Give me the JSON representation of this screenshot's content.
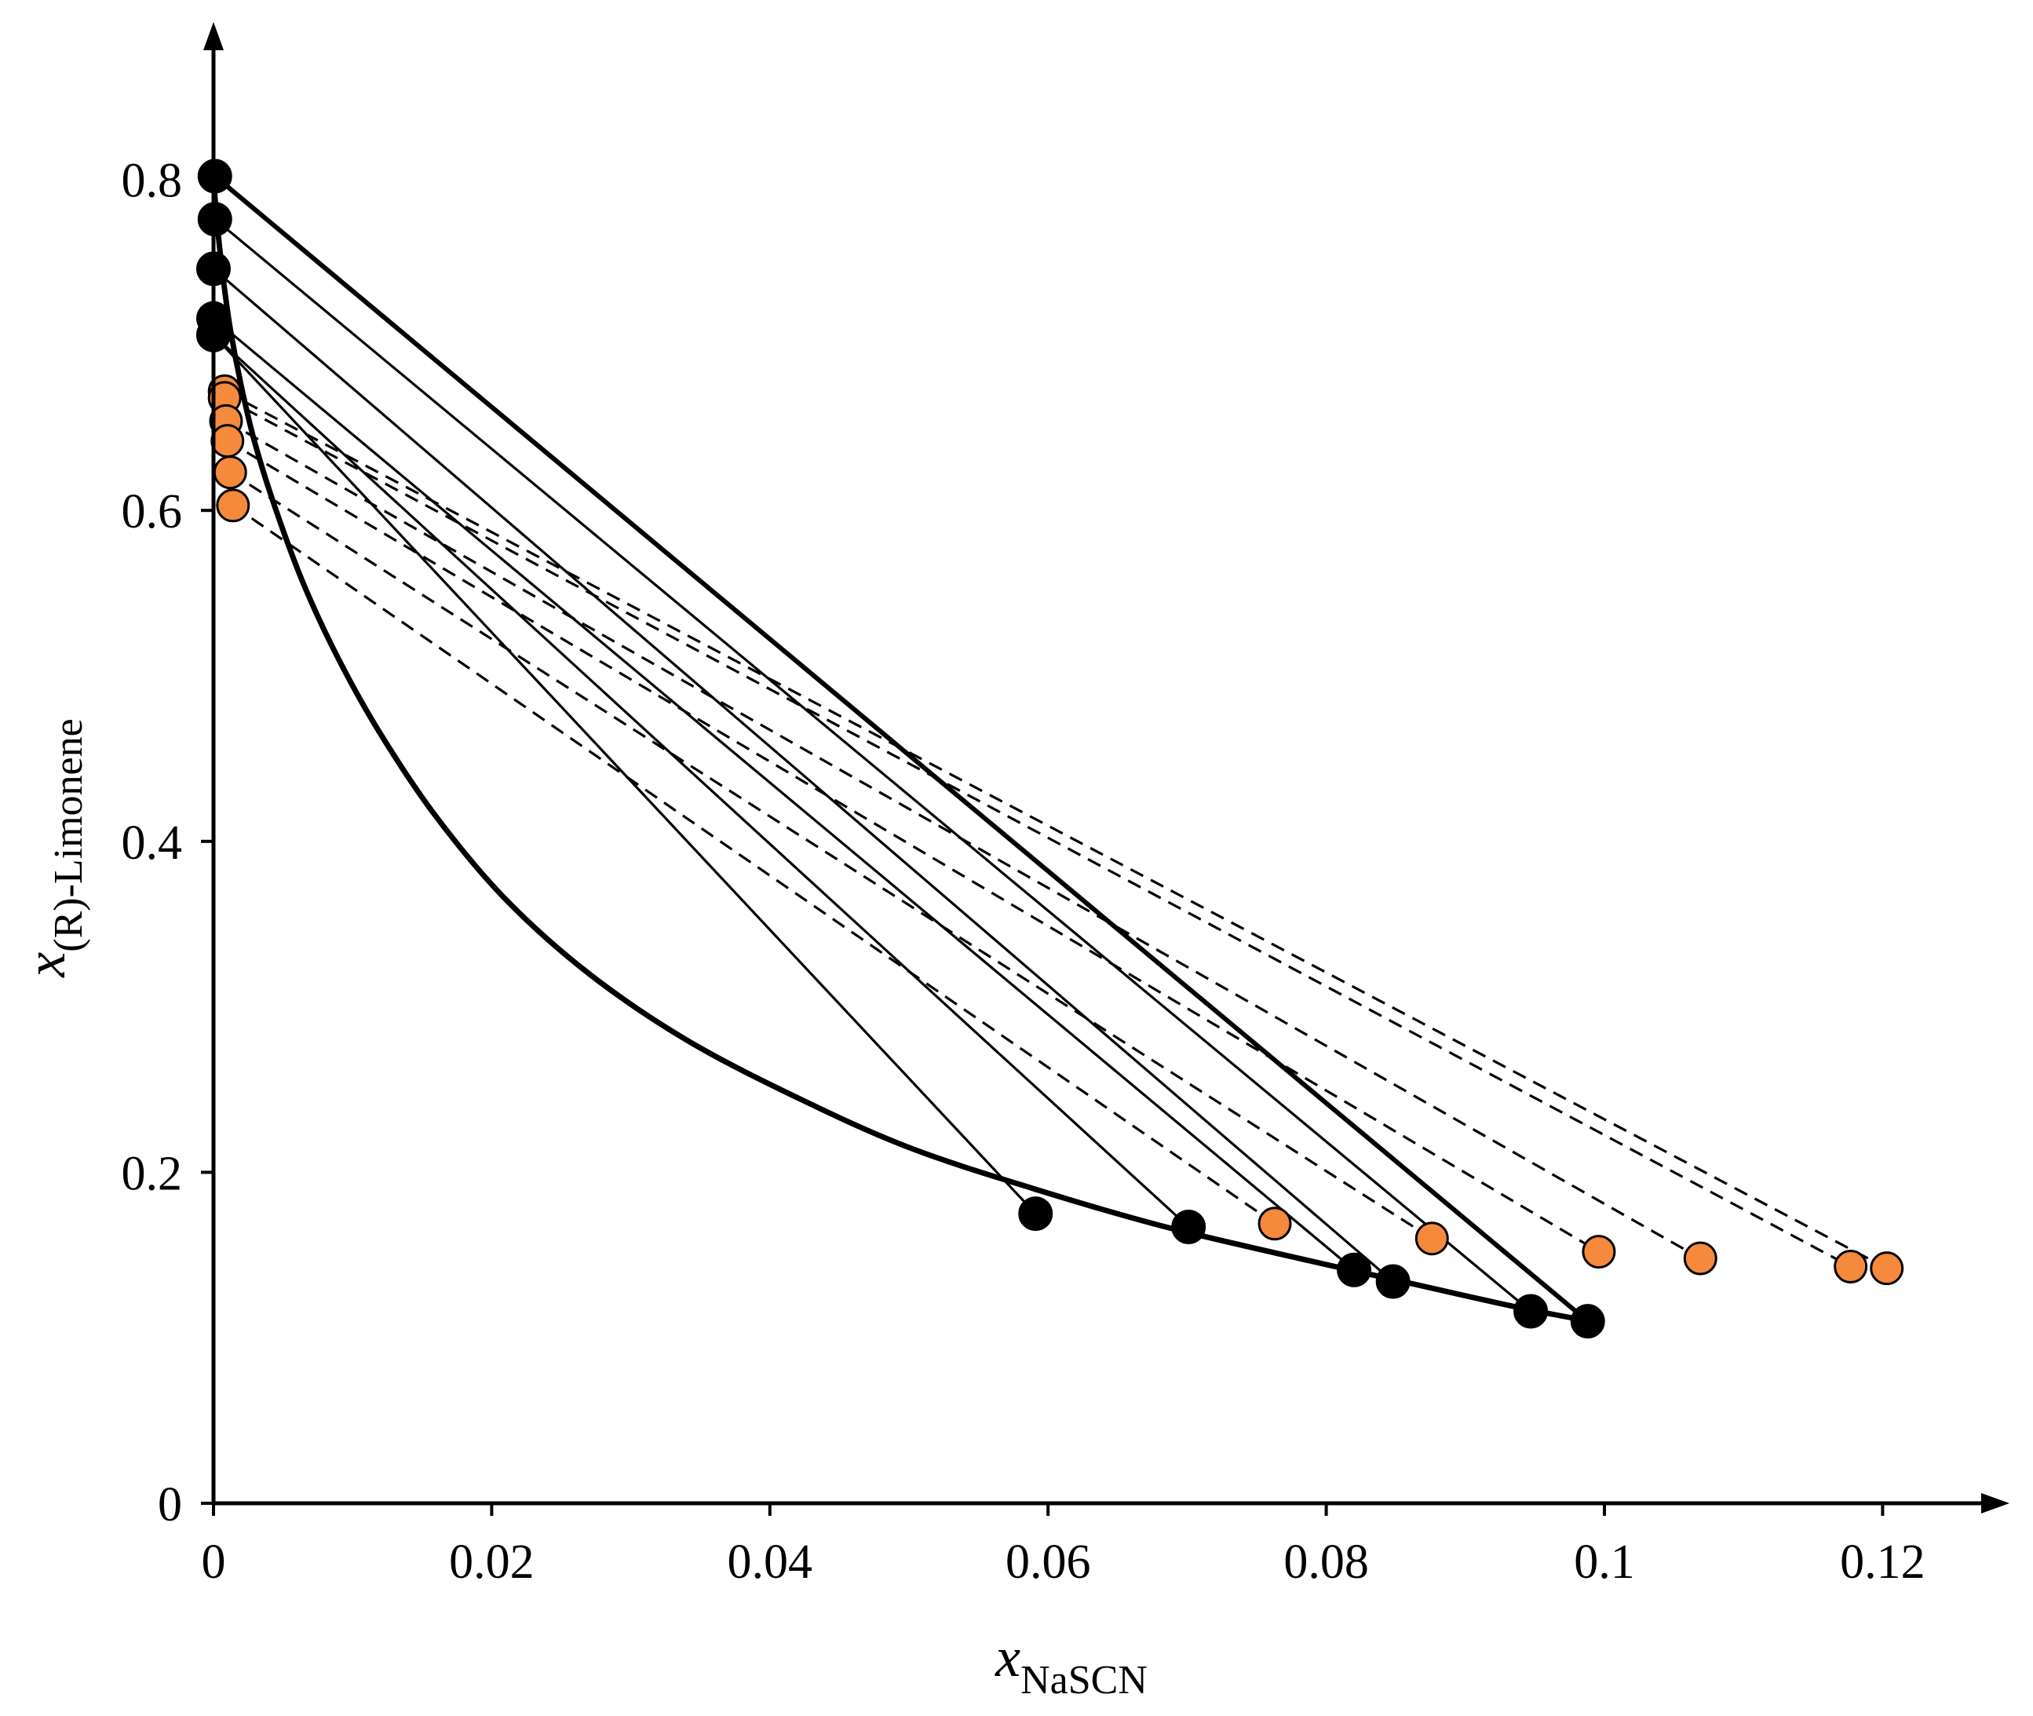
{
  "chart_data": {
    "type": "scatter",
    "xlabel": {
      "main": "x",
      "sub": "NaSCN"
    },
    "ylabel": {
      "main": "x",
      "sub": "(R)-Limonene"
    },
    "xlim": [
      0,
      0.13
    ],
    "ylim": [
      0,
      0.88
    ],
    "x_ticks": [
      0,
      0.02,
      0.04,
      0.06,
      0.08,
      0.1,
      0.12
    ],
    "x_tick_labels": [
      "0",
      "0.02",
      "0.04",
      "0.06",
      "0.08",
      "0.1",
      "0.12"
    ],
    "y_ticks": [
      0,
      0.2,
      0.4,
      0.6,
      0.8
    ],
    "y_tick_labels": [
      "0",
      "0.2",
      "0.4",
      "0.6",
      "0.8"
    ],
    "grid": false,
    "legend": "none",
    "colors": {
      "black_marker": "#000000",
      "orange_marker": "#F58A3C",
      "line": "#000000"
    },
    "binodal_curve": {
      "style": "thick-solid",
      "x": [
        0,
        0.0003,
        0.0007,
        0.0012,
        0.002,
        0.003,
        0.0045,
        0.0065,
        0.009,
        0.012,
        0.016,
        0.021,
        0.027,
        0.034,
        0.042,
        0.05,
        0.059,
        0.068,
        0.077,
        0.086,
        0.094,
        0.099
      ],
      "y": [
        0.8,
        0.77,
        0.74,
        0.71,
        0.675,
        0.64,
        0.6,
        0.555,
        0.51,
        0.465,
        0.415,
        0.365,
        0.32,
        0.28,
        0.245,
        0.215,
        0.19,
        0.168,
        0.15,
        0.133,
        0.118,
        0.11
      ]
    },
    "series": [
      {
        "marker": "black-filled",
        "line_style": "solid",
        "tie_lines": [
          {
            "x1": 0.0001,
            "y1": 0.802,
            "x2": 0.0988,
            "y2": 0.11
          },
          {
            "x1": 0.0001,
            "y1": 0.776,
            "x2": 0.0947,
            "y2": 0.116
          },
          {
            "x1": 0.0,
            "y1": 0.746,
            "x2": 0.0848,
            "y2": 0.134
          },
          {
            "x1": 0.0,
            "y1": 0.716,
            "x2": 0.082,
            "y2": 0.141
          },
          {
            "x1": 0.0,
            "y1": 0.706,
            "x2": 0.0701,
            "y2": 0.167
          },
          {
            "x1": 0.0,
            "y1": 0.706,
            "x2": 0.0591,
            "y2": 0.175
          }
        ]
      },
      {
        "marker": "orange-filled",
        "line_style": "dashed",
        "tie_lines": [
          {
            "x1": 0.0008,
            "y1": 0.672,
            "x2": 0.1203,
            "y2": 0.142
          },
          {
            "x1": 0.0008,
            "y1": 0.668,
            "x2": 0.1177,
            "y2": 0.143
          },
          {
            "x1": 0.0009,
            "y1": 0.654,
            "x2": 0.1069,
            "y2": 0.148
          },
          {
            "x1": 0.001,
            "y1": 0.642,
            "x2": 0.0996,
            "y2": 0.152
          },
          {
            "x1": 0.0012,
            "y1": 0.623,
            "x2": 0.0876,
            "y2": 0.16
          },
          {
            "x1": 0.0014,
            "y1": 0.603,
            "x2": 0.0763,
            "y2": 0.169
          }
        ]
      }
    ]
  }
}
